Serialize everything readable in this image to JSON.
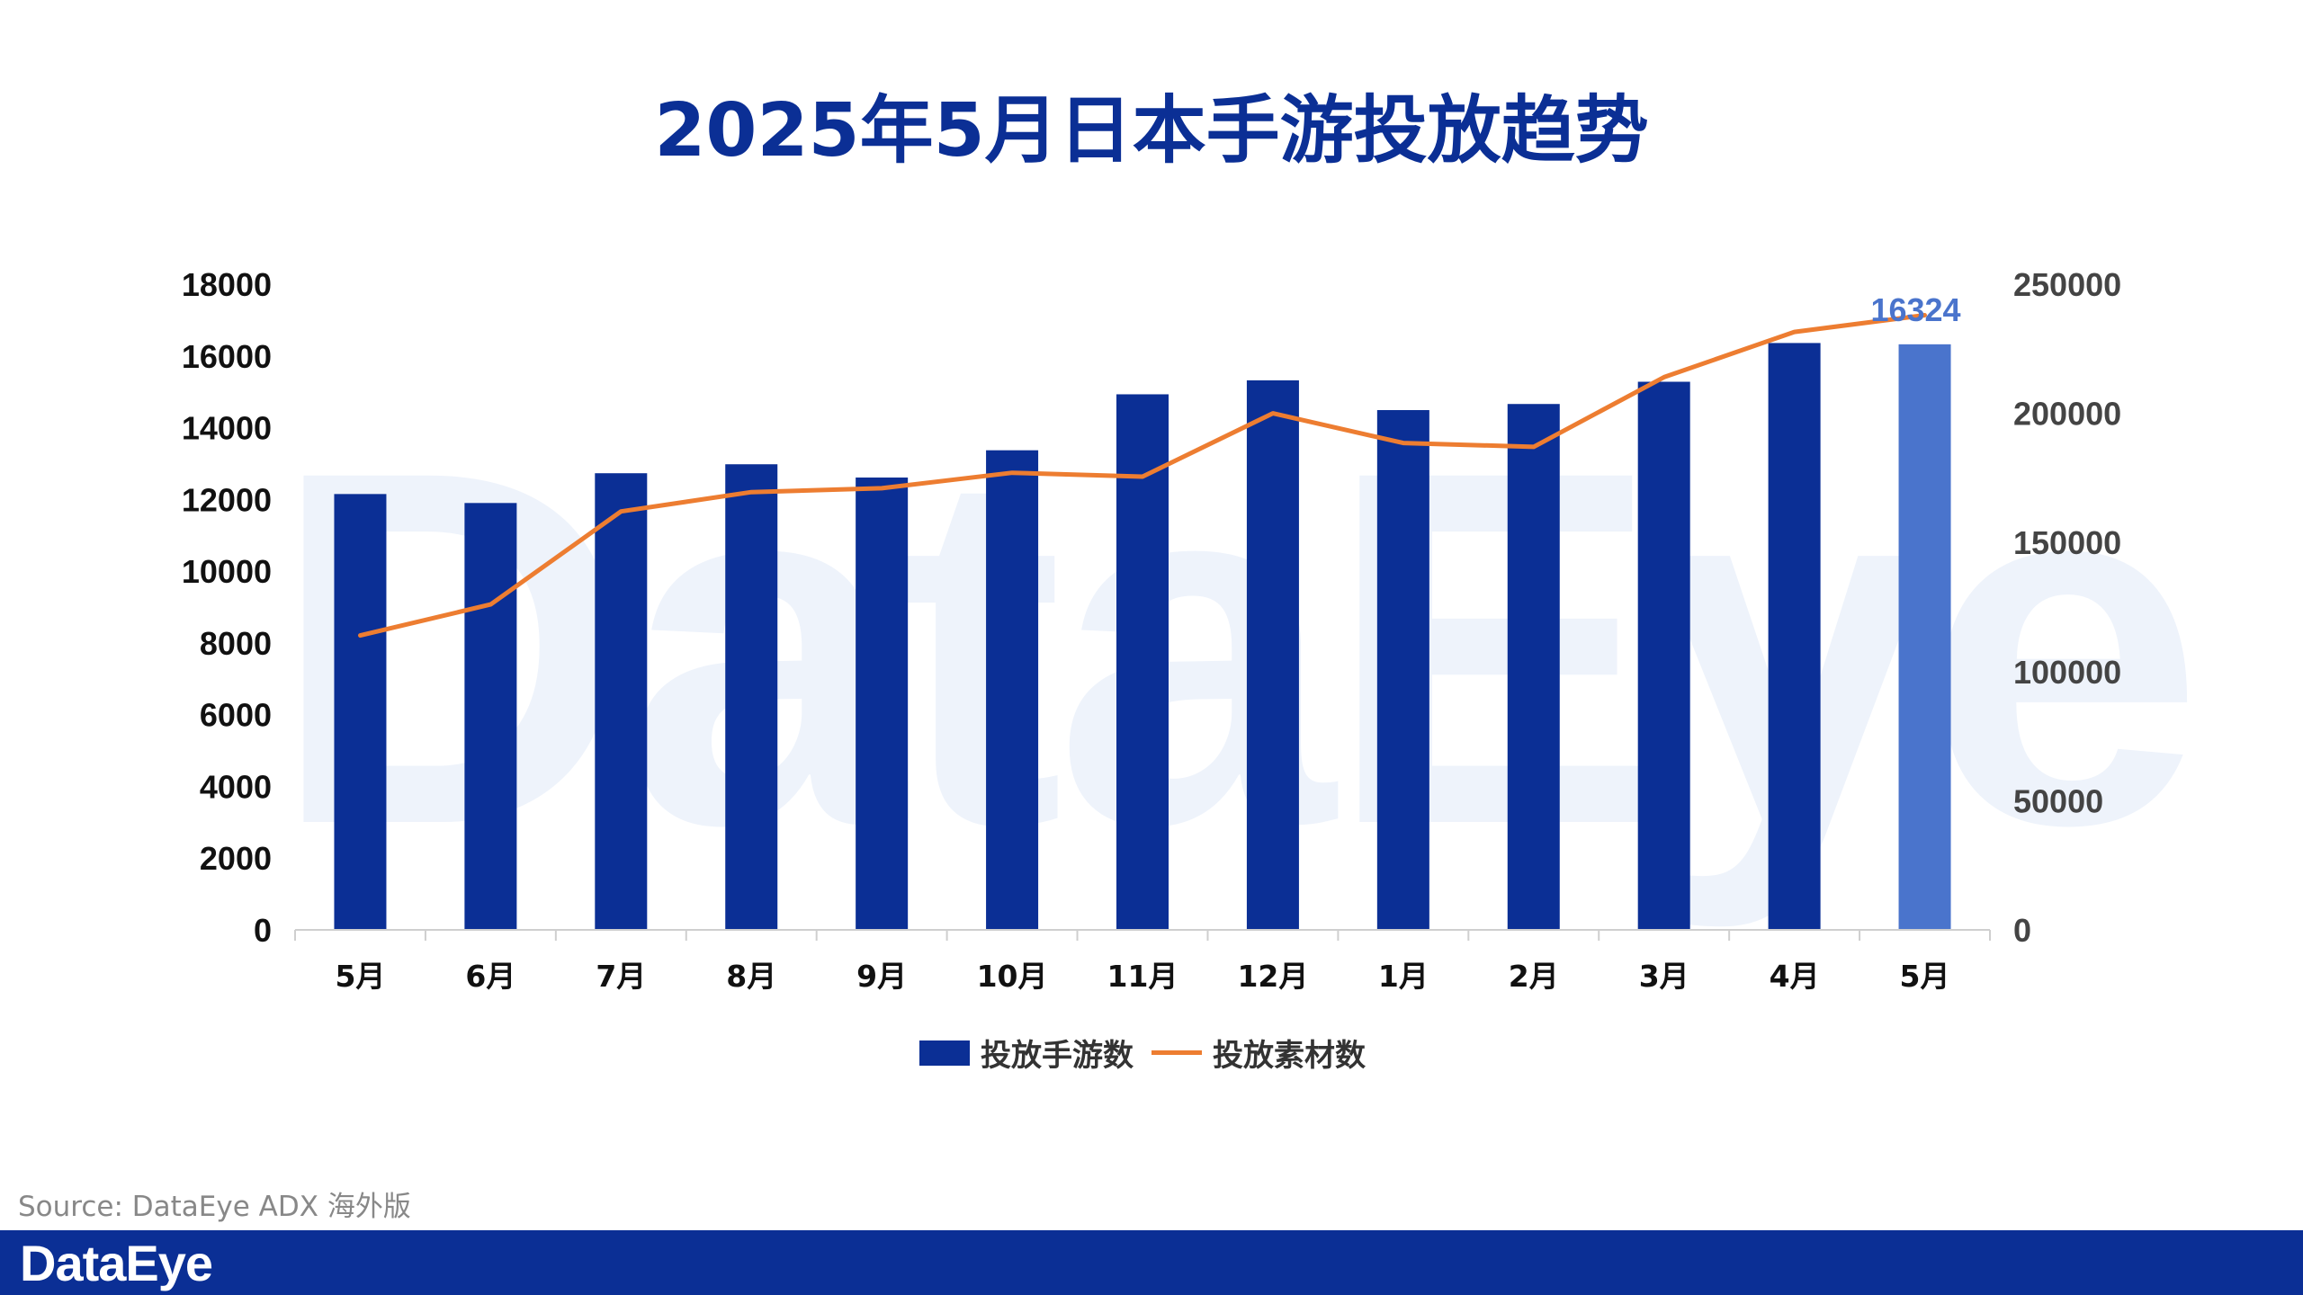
{
  "title": "2025年5月日本手游投放趋势",
  "watermark": "DataEye",
  "source": "Source: DataEye ADX 海外版",
  "footer": {
    "logo": "DataEye",
    "bg_color": "#0b2f95"
  },
  "colors": {
    "bar": "#0b2f95",
    "bar_highlight": "#4a74cc",
    "line": "#ed7d31",
    "title": "#0b2f95"
  },
  "chart_data": {
    "type": "bar",
    "categories": [
      "5月",
      "6月",
      "7月",
      "8月",
      "9月",
      "10月",
      "11月",
      "12月",
      "1月",
      "2月",
      "3月",
      "4月",
      "5月"
    ],
    "series": [
      {
        "name": "投放手游数",
        "type": "bar",
        "axis": "left",
        "values": [
          12150,
          11900,
          12730,
          12980,
          12610,
          13370,
          14930,
          15320,
          14490,
          14660,
          15280,
          16360,
          16324
        ]
      },
      {
        "name": "投放素材数",
        "type": "line",
        "axis": "right",
        "values": [
          114000,
          126000,
          162000,
          169500,
          171000,
          177000,
          175500,
          200000,
          188500,
          187000,
          214000,
          231500,
          238000
        ]
      }
    ],
    "highlight": {
      "index": 12,
      "label": "16324"
    },
    "y_left": {
      "ylim": [
        0,
        18000
      ],
      "ticks": [
        "0",
        "2000",
        "4000",
        "6000",
        "8000",
        "10000",
        "12000",
        "14000",
        "16000",
        "18000"
      ]
    },
    "y_right": {
      "ylim": [
        0,
        250000
      ],
      "ticks": [
        "0",
        "50000",
        "100000",
        "150000",
        "200000",
        "250000"
      ]
    },
    "legend_position": "bottom-center",
    "grid": false
  }
}
